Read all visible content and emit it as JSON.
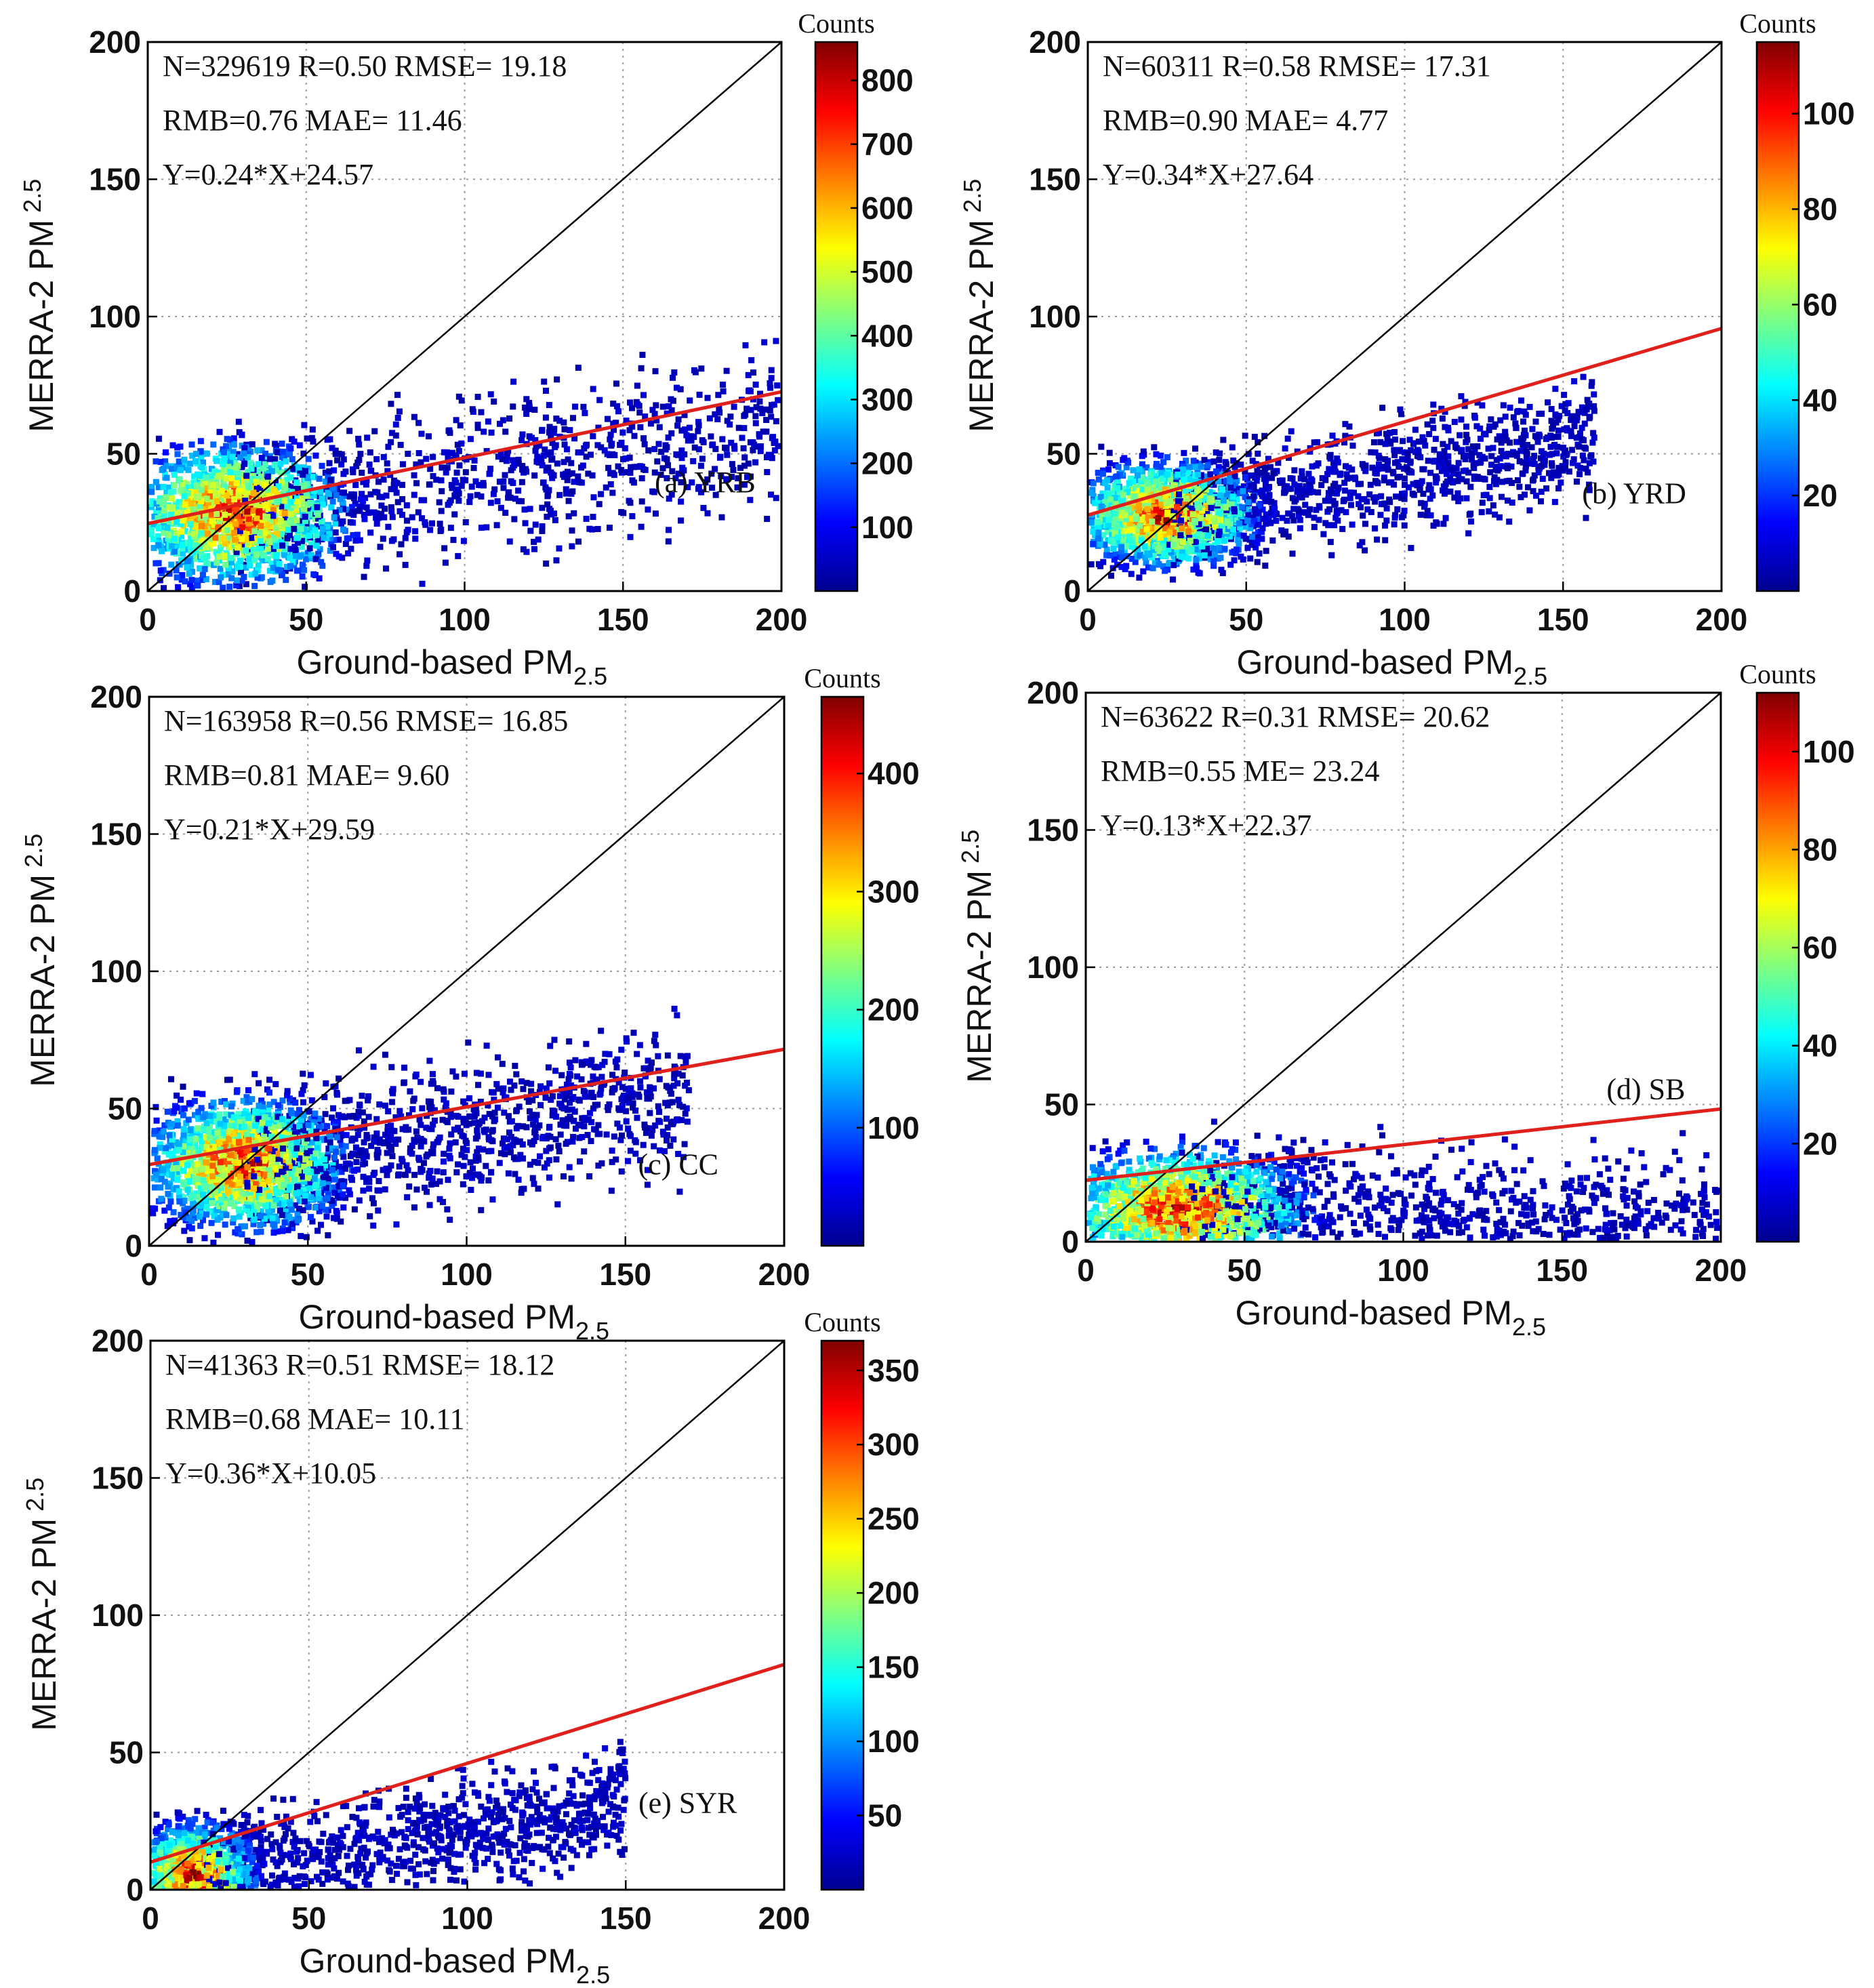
{
  "figure": {
    "colorbar_title": "Counts",
    "y_axis_label": "MERRA-2 PM",
    "y_axis_sub": "2.5",
    "x_axis_label": "Ground-based PM",
    "x_axis_sub": "2.5",
    "colors": {
      "one_to_one_line": "#000000",
      "fit_line": "#e0201b",
      "gridline": "#9a9a9a",
      "colormap": [
        "#00008f",
        "#0000ff",
        "#0080ff",
        "#00ffff",
        "#80ff80",
        "#ffff00",
        "#ff8000",
        "#ff0000",
        "#800000"
      ]
    }
  },
  "chart_data": [
    {
      "type": "scatter",
      "panel": "(a) YRB",
      "stats": {
        "line1": [
          "N=329619",
          "R=0.50",
          "RMSE= 19.18"
        ],
        "line2": [
          "RMB=0.76",
          "MAE= 11.46"
        ],
        "line3": "Y=0.24*X+24.57"
      },
      "fit": {
        "slope": 0.24,
        "intercept": 24.57
      },
      "xlim": [
        0,
        200
      ],
      "ylim": [
        0,
        200
      ],
      "xticks": [
        0,
        50,
        100,
        150,
        200
      ],
      "yticks": [
        0,
        50,
        100,
        150,
        200
      ],
      "colorbar": {
        "max": 860,
        "ticks": [
          100,
          200,
          300,
          400,
          500,
          600,
          700,
          800
        ]
      },
      "density": {
        "center": [
          28,
          28
        ],
        "spread": [
          22,
          16
        ],
        "tail_to": [
          200,
          60
        ]
      }
    },
    {
      "type": "scatter",
      "panel": "(b) YRD",
      "stats": {
        "line1": [
          "N=60311",
          "R=0.58",
          "RMSE= 17.31"
        ],
        "line2": [
          "RMB=0.90",
          "MAE= 4.77"
        ],
        "line3": "Y=0.34*X+27.64"
      },
      "fit": {
        "slope": 0.34,
        "intercept": 27.64
      },
      "xlim": [
        0,
        200
      ],
      "ylim": [
        0,
        200
      ],
      "xticks": [
        0,
        50,
        100,
        150,
        200
      ],
      "yticks": [
        0,
        50,
        100,
        150,
        200
      ],
      "colorbar": {
        "max": 115,
        "ticks": [
          20,
          40,
          60,
          80,
          100
        ]
      },
      "density": {
        "center": [
          25,
          28
        ],
        "spread": [
          18,
          12
        ],
        "tail_to": [
          160,
          55
        ]
      }
    },
    {
      "type": "scatter",
      "panel": "(c) CC",
      "stats": {
        "line1": [
          "N=163958",
          "R=0.56",
          "RMSE= 16.85"
        ],
        "line2": [
          "RMB=0.81",
          "MAE= 9.60"
        ],
        "line3": "Y=0.21*X+29.59"
      },
      "fit": {
        "slope": 0.21,
        "intercept": 29.59
      },
      "xlim": [
        0,
        200
      ],
      "ylim": [
        0,
        200
      ],
      "xticks": [
        0,
        50,
        100,
        150,
        200
      ],
      "yticks": [
        0,
        50,
        100,
        150,
        200
      ],
      "colorbar": {
        "max": 465,
        "ticks": [
          100,
          200,
          300,
          400
        ]
      },
      "density": {
        "center": [
          30,
          30
        ],
        "spread": [
          20,
          15
        ],
        "tail_to": [
          170,
          55
        ]
      }
    },
    {
      "type": "scatter",
      "panel": "(d) SB",
      "stats": {
        "line1": [
          "N=63622",
          "R=0.31",
          "RMSE= 20.62"
        ],
        "line2": [
          "RMB=0.55",
          "ME= 23.24"
        ],
        "line3": "Y=0.13*X+22.37"
      },
      "fit": {
        "slope": 0.13,
        "intercept": 22.37
      },
      "xlim": [
        0,
        200
      ],
      "ylim": [
        0,
        200
      ],
      "xticks": [
        0,
        50,
        100,
        150,
        200
      ],
      "yticks": [
        0,
        50,
        100,
        150,
        200
      ],
      "colorbar": {
        "max": 112,
        "ticks": [
          20,
          40,
          60,
          80,
          100
        ]
      },
      "density": {
        "center": [
          30,
          12
        ],
        "spread": [
          25,
          14
        ],
        "tail_to": [
          200,
          5
        ]
      }
    },
    {
      "type": "scatter",
      "panel": "(e) SYR",
      "stats": {
        "line1": [
          "N=41363",
          "R=0.51",
          "RMSE= 18.12"
        ],
        "line2": [
          "RMB=0.68",
          "MAE= 10.11"
        ],
        "line3": "Y=0.36*X+10.05"
      },
      "fit": {
        "slope": 0.36,
        "intercept": 10.05
      },
      "xlim": [
        0,
        200
      ],
      "ylim": [
        0,
        200
      ],
      "xticks": [
        0,
        50,
        100,
        150,
        200
      ],
      "yticks": [
        0,
        50,
        100,
        150,
        200
      ],
      "colorbar": {
        "max": 370,
        "ticks": [
          50,
          100,
          150,
          200,
          250,
          300,
          350
        ]
      },
      "density": {
        "center": [
          14,
          5
        ],
        "spread": [
          12,
          12
        ],
        "tail_to": [
          150,
          30
        ]
      }
    }
  ]
}
